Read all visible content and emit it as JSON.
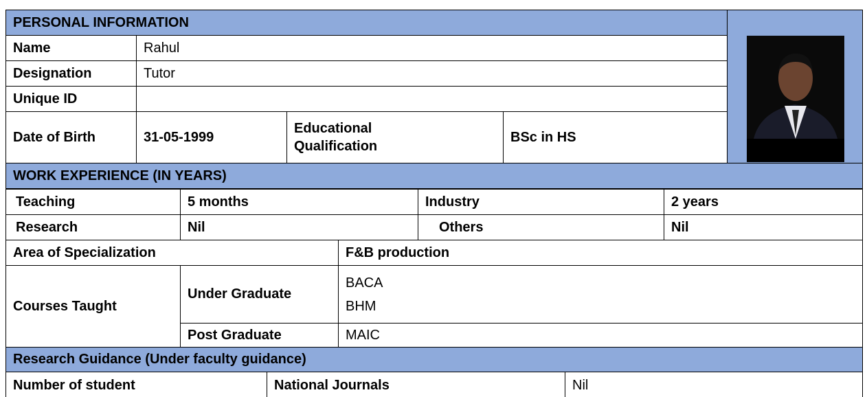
{
  "personal_information": {
    "title": "PERSONAL INFORMATION",
    "name": {
      "label": "Name",
      "value": "Rahul"
    },
    "designation": {
      "label": "Designation",
      "value": "Tutor"
    },
    "unique_id": {
      "label": "Unique ID"
    },
    "date_of_birth": {
      "label": "Date of Birth",
      "value": "31-05-1999"
    },
    "educational_qualification": {
      "label": "Educational Qualification",
      "value": "BSc in HS"
    }
  },
  "work_experience": {
    "title": "WORK EXPERIENCE (IN YEARS)",
    "teaching": {
      "label": "Teaching",
      "value": "5 months"
    },
    "industry": {
      "label": "Industry",
      "value": "2 years"
    },
    "research": {
      "label": "Research",
      "value": "Nil"
    },
    "others": {
      "label": "Others",
      "value": "Nil"
    }
  },
  "area_of_specialization": {
    "label": "Area of Specialization",
    "value": "F&B production"
  },
  "courses_taught": {
    "label": "Courses Taught",
    "under_graduate": {
      "label": "Under Graduate",
      "values": [
        "BACA",
        "BHM"
      ]
    },
    "post_graduate": {
      "label": "Post Graduate",
      "values": [
        "MAIC"
      ]
    }
  },
  "research_guidance": {
    "title": "Research Guidance (Under faculty guidance)",
    "number_of_student": {
      "label": "Number of student"
    },
    "national_journals": {
      "label": "National Journals",
      "value": "Nil"
    }
  }
}
